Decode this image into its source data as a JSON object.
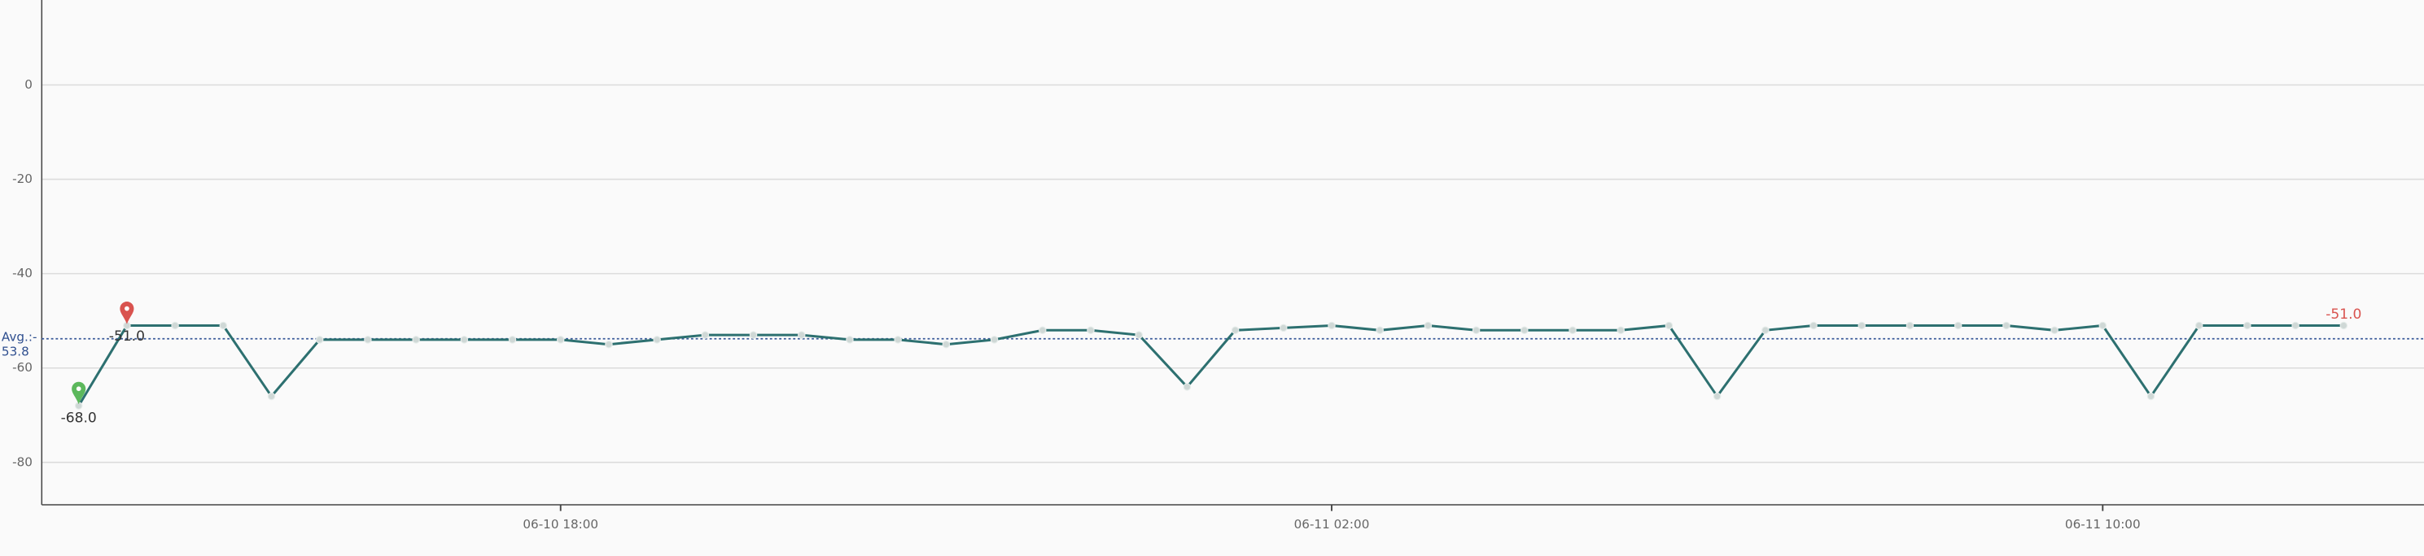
{
  "chart_data": {
    "type": "line",
    "x": [
      "06-10 13:00",
      "06-10 13:30",
      "06-10 14:00",
      "06-10 14:30",
      "06-10 15:00",
      "06-10 15:30",
      "06-10 16:00",
      "06-10 16:30",
      "06-10 17:00",
      "06-10 17:30",
      "06-10 18:00",
      "06-10 18:30",
      "06-10 19:00",
      "06-10 19:30",
      "06-10 20:00",
      "06-10 20:30",
      "06-10 21:00",
      "06-10 21:30",
      "06-10 22:00",
      "06-10 22:30",
      "06-10 23:00",
      "06-10 23:30",
      "06-11 00:00",
      "06-11 00:30",
      "06-11 01:00",
      "06-11 01:30",
      "06-11 02:00",
      "06-11 02:30",
      "06-11 03:00",
      "06-11 03:30",
      "06-11 04:00",
      "06-11 04:30",
      "06-11 05:00",
      "06-11 05:30",
      "06-11 06:00",
      "06-11 06:30",
      "06-11 07:00",
      "06-11 07:30",
      "06-11 08:00",
      "06-11 08:30",
      "06-11 09:00",
      "06-11 09:30",
      "06-11 10:00",
      "06-11 10:30",
      "06-11 11:00",
      "06-11 11:30",
      "06-11 12:00",
      "06-11 12:30"
    ],
    "series": [
      {
        "color": "#2d7070",
        "values": [
          -68,
          -51,
          -51,
          -51,
          -66,
          -54,
          -54,
          -54,
          -54,
          -54,
          -54,
          -55,
          -54,
          -53,
          -53,
          -53,
          -54,
          -54,
          -55,
          -54,
          -52,
          -52,
          -53,
          -64,
          -52,
          -51.5,
          -51,
          -52,
          -51,
          -52,
          -52,
          -52,
          -52,
          -51,
          -66,
          -52,
          -51,
          -51,
          -51,
          -51,
          -51,
          -52,
          -51,
          -66,
          -51,
          -51,
          -51,
          -51
        ]
      }
    ],
    "xlim": [
      "06-10 12:37",
      "06-11 13:20"
    ],
    "xticks": [
      "06-10 18:00",
      "06-11 02:00",
      "06-11 10:00"
    ],
    "ylim": [
      -89,
      18
    ],
    "yticks": [
      0,
      -20,
      -40,
      -60,
      -80
    ],
    "grid": true,
    "average": -53.8,
    "average_label": [
      "Avg.:-",
      "53.8"
    ],
    "max": {
      "value": -51,
      "label": "-51.0",
      "color": "#d9534f"
    },
    "min": {
      "value": -68,
      "label": "-68.0",
      "color": "#5cb85c"
    },
    "last": {
      "value": -51,
      "label": "-51.0",
      "color": "#d9534f"
    }
  }
}
